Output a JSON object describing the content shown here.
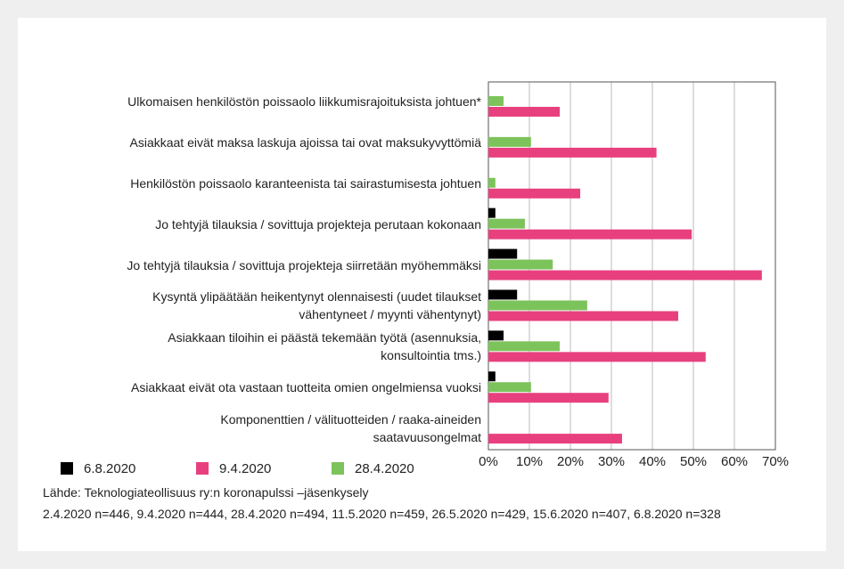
{
  "chart_data": {
    "type": "barh",
    "categories": [
      "Ulkomaisen henkilöstön poissaolo liikkumisrajoituksista johtuen*",
      "Asiakkaat eivät maksa laskuja ajoissa tai ovat maksukyvyttömiä",
      "Henkilöstön poissaolo karanteenista tai sairastumisesta johtuen",
      "Jo tehtyjä tilauksia / sovittuja projekteja perutaan kokonaan",
      "Jo tehtyjä tilauksia / sovittuja projekteja siirretään myöhemmäksi",
      "Kysyntä ylipäätään heikentynyt olennaisesti (uudet tilaukset\nvähentyneet / myynti vähentynyt)",
      "Asiakkaan tiloihin ei päästä tekemään työtä (asennuksia,\nkonsultointia tms.)",
      "Asiakkaat eivät ota vastaan tuotteita omien ongelmiensa vuoksi",
      "Komponenttien / välituotteiden / raaka-aineiden\nsaatavuusongelmat"
    ],
    "series": [
      {
        "name": "6.8.2020",
        "color": "#000000",
        "values": [
          null,
          null,
          null,
          1.7,
          7,
          7,
          3.7,
          1.7,
          null
        ]
      },
      {
        "name": "9.4.2020",
        "color": "#e8407f",
        "values": [
          17.4,
          41,
          22.4,
          49.6,
          66.7,
          46.3,
          53,
          29.3,
          32.6
        ]
      },
      {
        "name": "28.4.2020",
        "color": "#7dc35b",
        "values": [
          3.7,
          10.4,
          1.7,
          8.9,
          15.7,
          24.1,
          17.4,
          10.4,
          null
        ]
      }
    ],
    "xlim": [
      0,
      70
    ],
    "xticks": [
      {
        "value": 0,
        "label": "0%"
      },
      {
        "value": 10,
        "label": "10%"
      },
      {
        "value": 20,
        "label": "20%"
      },
      {
        "value": 30,
        "label": "30%"
      },
      {
        "value": 40,
        "label": "40%"
      },
      {
        "value": 50,
        "label": "50%"
      },
      {
        "value": 60,
        "label": "60%"
      },
      {
        "value": 70,
        "label": "70%"
      }
    ],
    "grid": true,
    "legend": "bottom",
    "source": [
      "Lähde: Teknologiateollisuus ry:n koronapulssi –jäsenkysely",
      "2.4.2020 n=446, 9.4.2020 n=444, 28.4.2020 n=494, 11.5.2020 n=459, 26.5.2020 n=429, 15.6.2020 n=407, 6.8.2020 n=328"
    ]
  }
}
